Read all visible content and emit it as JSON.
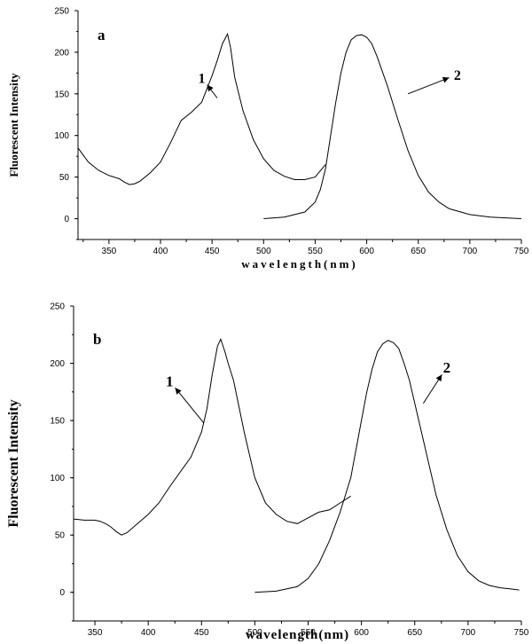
{
  "chart_data": [
    {
      "type": "line",
      "panel_label": "a",
      "xlabel": "wavelength(nm)",
      "ylabel": "Fluorescent Intensity",
      "xlim": [
        320,
        750
      ],
      "ylim": [
        -25,
        250
      ],
      "xticks": [
        350,
        400,
        450,
        500,
        550,
        600,
        650,
        700,
        750
      ],
      "yticks": [
        0,
        50,
        100,
        150,
        200,
        250
      ],
      "series": [
        {
          "label": "1",
          "label_at": [
            440,
            163
          ],
          "arrow_to": [
            455,
            145
          ],
          "x": [
            320,
            330,
            340,
            350,
            360,
            365,
            370,
            375,
            380,
            390,
            400,
            410,
            420,
            430,
            440,
            450,
            455,
            460,
            465,
            468,
            472,
            480,
            490,
            500,
            510,
            520,
            530,
            540,
            550,
            560
          ],
          "y": [
            85,
            68,
            58,
            52,
            48,
            44,
            41,
            42,
            45,
            55,
            68,
            92,
            118,
            128,
            140,
            172,
            190,
            210,
            222,
            205,
            170,
            130,
            95,
            72,
            58,
            51,
            47,
            47,
            50,
            65
          ]
        },
        {
          "label": "2",
          "label_at": [
            688,
            167
          ],
          "arrow_to": [
            640,
            150
          ],
          "x": [
            500,
            520,
            540,
            550,
            555,
            560,
            565,
            570,
            575,
            580,
            585,
            590,
            595,
            600,
            605,
            610,
            620,
            630,
            640,
            650,
            660,
            670,
            680,
            700,
            720,
            750
          ],
          "y": [
            0,
            2,
            8,
            20,
            35,
            60,
            100,
            140,
            175,
            200,
            215,
            220,
            221,
            218,
            210,
            195,
            160,
            120,
            82,
            52,
            32,
            20,
            12,
            5,
            2,
            0
          ]
        }
      ]
    },
    {
      "type": "line",
      "panel_label": "b",
      "xlabel": "wavelength(nm)",
      "ylabel": "Fluorescent Intensity",
      "xlim": [
        330,
        750
      ],
      "ylim": [
        -25,
        250
      ],
      "xticks": [
        350,
        400,
        450,
        500,
        550,
        600,
        650,
        700,
        750
      ],
      "yticks": [
        0,
        50,
        100,
        150,
        200,
        250
      ],
      "series": [
        {
          "label": "1",
          "label_at": [
            420,
            180
          ],
          "arrow_to": [
            452,
            148
          ],
          "x": [
            330,
            340,
            350,
            355,
            360,
            365,
            370,
            375,
            380,
            390,
            400,
            410,
            420,
            430,
            440,
            450,
            455,
            460,
            465,
            468,
            472,
            475,
            480,
            490,
            500,
            510,
            520,
            530,
            540,
            550,
            560,
            570,
            580,
            590
          ],
          "y": [
            64,
            63,
            63,
            62,
            60,
            57,
            53,
            50,
            52,
            60,
            68,
            78,
            92,
            105,
            118,
            140,
            160,
            190,
            215,
            221,
            210,
            200,
            185,
            140,
            100,
            78,
            68,
            62,
            60,
            65,
            70,
            72,
            78,
            84
          ]
        },
        {
          "label": "2",
          "label_at": [
            680,
            192
          ],
          "arrow_to": [
            658,
            165
          ],
          "x": [
            500,
            520,
            540,
            550,
            560,
            570,
            580,
            590,
            595,
            600,
            605,
            610,
            615,
            620,
            625,
            630,
            635,
            640,
            645,
            650,
            660,
            670,
            680,
            690,
            700,
            710,
            720,
            730,
            740,
            748
          ],
          "y": [
            0,
            1,
            5,
            12,
            25,
            45,
            70,
            100,
            125,
            150,
            175,
            195,
            210,
            217,
            220,
            218,
            213,
            200,
            185,
            165,
            125,
            85,
            55,
            32,
            18,
            10,
            6,
            4,
            3,
            2
          ]
        }
      ]
    }
  ]
}
